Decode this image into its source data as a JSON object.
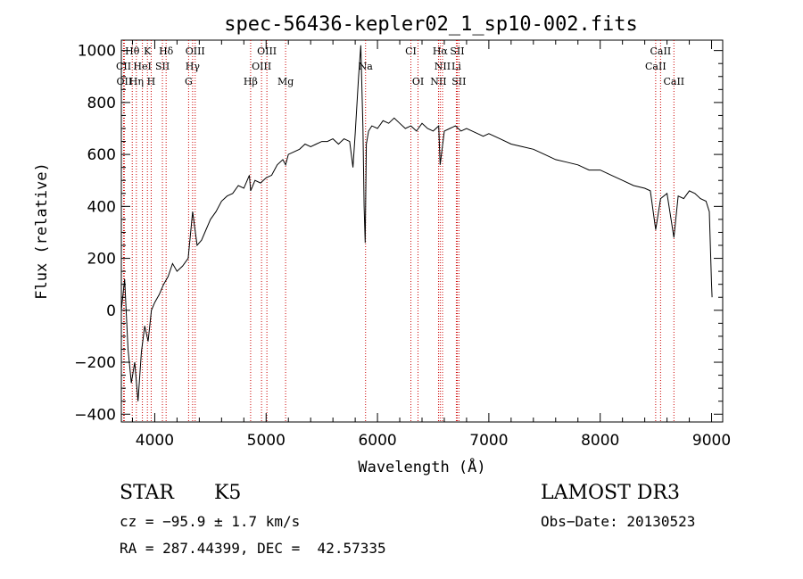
{
  "chart_data": {
    "type": "line",
    "title": "spec-56436-kepler02_1_sp10-002.fits",
    "xlabel": "Wavelength (Å)",
    "ylabel": "Flux (relative)",
    "xlim": [
      3700,
      9100
    ],
    "ylim": [
      -430,
      1040
    ],
    "xticks": [
      4000,
      5000,
      6000,
      7000,
      8000,
      9000
    ],
    "xtick_labels": [
      "4000",
      "5000",
      "6000",
      "7000",
      "8000",
      "9000"
    ],
    "yticks": [
      -400,
      -200,
      0,
      200,
      400,
      600,
      800,
      1000
    ],
    "ytick_labels": [
      "−400",
      "−200",
      "0",
      "200",
      "400",
      "600",
      "800",
      "1000"
    ],
    "grid": false,
    "series": [
      {
        "name": "spectrum",
        "x": [
          3700,
          3730,
          3760,
          3790,
          3820,
          3850,
          3880,
          3910,
          3940,
          3970,
          4000,
          4040,
          4080,
          4120,
          4160,
          4200,
          4250,
          4300,
          4340,
          4380,
          4420,
          4460,
          4500,
          4550,
          4600,
          4650,
          4700,
          4750,
          4800,
          4850,
          4861,
          4900,
          4950,
          5000,
          5050,
          5100,
          5150,
          5175,
          5200,
          5250,
          5300,
          5350,
          5400,
          5450,
          5500,
          5550,
          5600,
          5650,
          5700,
          5750,
          5780,
          5800,
          5830,
          5850,
          5870,
          5880,
          5890,
          5900,
          5920,
          5950,
          6000,
          6050,
          6100,
          6150,
          6200,
          6250,
          6300,
          6350,
          6400,
          6450,
          6500,
          6550,
          6563,
          6600,
          6650,
          6700,
          6750,
          6800,
          6850,
          6900,
          6950,
          7000,
          7100,
          7200,
          7300,
          7400,
          7500,
          7600,
          7700,
          7800,
          7900,
          8000,
          8100,
          8200,
          8300,
          8400,
          8450,
          8498,
          8542,
          8600,
          8662,
          8700,
          8750,
          8800,
          8850,
          8900,
          8950,
          8980,
          9000,
          9005
        ],
        "y": [
          0,
          120,
          -150,
          -280,
          -200,
          -350,
          -160,
          -60,
          -120,
          0,
          30,
          60,
          100,
          130,
          180,
          150,
          170,
          200,
          380,
          250,
          270,
          310,
          350,
          380,
          420,
          440,
          450,
          480,
          470,
          520,
          460,
          500,
          490,
          510,
          520,
          560,
          580,
          560,
          600,
          610,
          620,
          640,
          630,
          640,
          650,
          650,
          660,
          640,
          660,
          650,
          550,
          680,
          900,
          1020,
          700,
          400,
          260,
          640,
          690,
          710,
          700,
          730,
          720,
          740,
          720,
          700,
          710,
          690,
          720,
          700,
          690,
          710,
          560,
          690,
          700,
          710,
          690,
          700,
          690,
          680,
          670,
          680,
          660,
          640,
          630,
          620,
          600,
          580,
          570,
          560,
          540,
          540,
          520,
          500,
          480,
          470,
          460,
          310,
          430,
          450,
          280,
          440,
          430,
          460,
          450,
          430,
          420,
          380,
          100,
          50
        ]
      }
    ],
    "line_labels": [
      {
        "text": "Hθ",
        "x": 3798,
        "row": 1
      },
      {
        "text": "K",
        "x": 3934,
        "row": 1
      },
      {
        "text": "Hδ",
        "x": 4102,
        "row": 1
      },
      {
        "text": "OIII",
        "x": 4363,
        "row": 1
      },
      {
        "text": "OIII",
        "x": 5007,
        "row": 1
      },
      {
        "text": "CI",
        "x": 6300,
        "row": 1
      },
      {
        "text": "Hα",
        "x": 6563,
        "row": 1
      },
      {
        "text": "SII",
        "x": 6716,
        "row": 1
      },
      {
        "text": "CaII",
        "x": 8542,
        "row": 1
      },
      {
        "text": "CII",
        "x": 3720,
        "row": 2
      },
      {
        "text": "HeI",
        "x": 3889,
        "row": 2
      },
      {
        "text": "SII",
        "x": 4069,
        "row": 2
      },
      {
        "text": "Hγ",
        "x": 4340,
        "row": 2
      },
      {
        "text": "OIII",
        "x": 4959,
        "row": 2
      },
      {
        "text": "Na",
        "x": 5893,
        "row": 2
      },
      {
        "text": "NII",
        "x": 6584,
        "row": 2
      },
      {
        "text": "Li",
        "x": 6708,
        "row": 2
      },
      {
        "text": "CaII",
        "x": 8498,
        "row": 2
      },
      {
        "text": "OII",
        "x": 3727,
        "row": 3
      },
      {
        "text": "Hη",
        "x": 3835,
        "row": 3
      },
      {
        "text": "H",
        "x": 3968,
        "row": 3
      },
      {
        "text": "G",
        "x": 4304,
        "row": 3
      },
      {
        "text": "Hβ",
        "x": 4861,
        "row": 3
      },
      {
        "text": "Mg",
        "x": 5175,
        "row": 3
      },
      {
        "text": "OI",
        "x": 6364,
        "row": 3
      },
      {
        "text": "NII",
        "x": 6548,
        "row": 3
      },
      {
        "text": "SII",
        "x": 6731,
        "row": 3
      },
      {
        "text": "CaII",
        "x": 8662,
        "row": 3
      }
    ],
    "line_markers": [
      3720,
      3727,
      3798,
      3835,
      3889,
      3934,
      3968,
      4069,
      4102,
      4304,
      4340,
      4363,
      4861,
      4959,
      5007,
      5175,
      5893,
      6300,
      6364,
      6548,
      6563,
      6584,
      6708,
      6716,
      6731,
      8498,
      8542,
      8662
    ],
    "colors": {
      "spectrum": "#000000",
      "marker": "#cc0000",
      "axis": "#000000"
    }
  },
  "info": {
    "object_class": "STAR",
    "subclass": "K5",
    "survey": "LAMOST DR3",
    "redshift": "cz = −95.9 ± 1.7 km/s",
    "obs_date": "Obs−Date: 20130523",
    "coords": "RA = 287.44399, DEC =  42.57335"
  }
}
